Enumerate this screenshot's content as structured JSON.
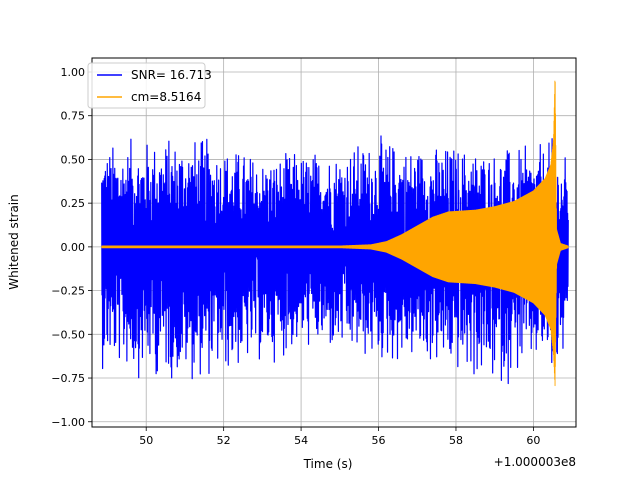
{
  "chart_data": {
    "type": "line",
    "title": "",
    "xlabel": "Time (s)",
    "ylabel": "Whitened strain",
    "x_offset_label": "+1.000003e8",
    "xlim": [
      48.6,
      61.1
    ],
    "ylim": [
      -1.03,
      1.08
    ],
    "x_ticks": [
      50,
      52,
      54,
      56,
      58,
      60
    ],
    "y_ticks": [
      -1.0,
      -0.75,
      -0.5,
      -0.25,
      0.0,
      0.25,
      0.5,
      0.75,
      1.0
    ],
    "x_tick_labels": [
      "50",
      "52",
      "54",
      "56",
      "58",
      "60"
    ],
    "y_tick_labels": [
      "−1.00",
      "−0.75",
      "−0.50",
      "−0.25",
      "0.00",
      "0.25",
      "0.50",
      "0.75",
      "1.00"
    ],
    "grid": true,
    "legend_position": "top-left",
    "series": [
      {
        "name": "SNR= 16.713",
        "color": "#0000ff",
        "kind": "noise",
        "x_range": [
          48.85,
          60.9
        ],
        "envelope": {
          "x": [
            48.85,
            50.0,
            51.0,
            52.0,
            53.0,
            54.0,
            55.0,
            56.0,
            57.0,
            58.0,
            59.0,
            60.0,
            60.3,
            60.55,
            60.65,
            60.9
          ],
          "upper": [
            0.62,
            0.65,
            0.68,
            0.62,
            0.55,
            0.58,
            0.6,
            0.66,
            0.62,
            0.62,
            0.6,
            0.58,
            0.63,
            0.65,
            0.55,
            0.55
          ],
          "lower": [
            -0.72,
            -0.78,
            -0.8,
            -0.78,
            -0.7,
            -0.62,
            -0.66,
            -0.72,
            -0.7,
            -0.78,
            -0.85,
            -0.74,
            -0.7,
            -0.88,
            -0.72,
            -0.7
          ]
        }
      },
      {
        "name": "cm=8.5164",
        "color": "#ffa500",
        "kind": "chirp",
        "x_range": [
          48.85,
          60.9
        ],
        "envelope": {
          "x": [
            48.85,
            55.0,
            55.8,
            56.2,
            56.6,
            57.0,
            57.4,
            57.8,
            58.5,
            59.0,
            59.5,
            60.0,
            60.3,
            60.45,
            60.52,
            60.56,
            60.6,
            60.7,
            60.9
          ],
          "upper": [
            0.005,
            0.005,
            0.012,
            0.03,
            0.07,
            0.12,
            0.17,
            0.2,
            0.21,
            0.23,
            0.26,
            0.32,
            0.39,
            0.47,
            0.62,
            1.0,
            0.1,
            0.02,
            0.005
          ],
          "lower": [
            -0.005,
            -0.005,
            -0.012,
            -0.03,
            -0.07,
            -0.12,
            -0.17,
            -0.2,
            -0.21,
            -0.23,
            -0.26,
            -0.32,
            -0.39,
            -0.47,
            -0.62,
            -0.8,
            -0.1,
            -0.02,
            -0.005
          ]
        }
      }
    ]
  }
}
